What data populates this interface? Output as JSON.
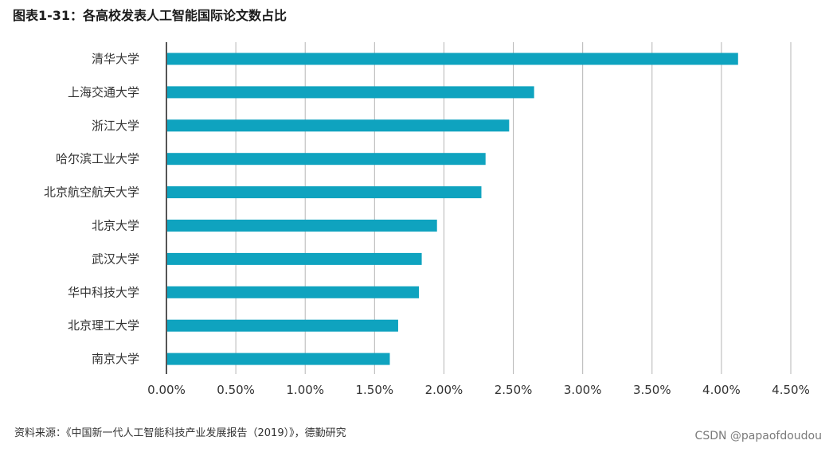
{
  "title": "图表1-31：各高校发表人工智能国际论文数占比",
  "source": "资料来源：《中国新一代人工智能科技产业发展报告（2019）》，德勤研究",
  "watermark": "CSDN @papaofdoudou",
  "chart_data": {
    "type": "bar",
    "orientation": "horizontal",
    "categories": [
      "清华大学",
      "上海交通大学",
      "浙江大学",
      "哈尔滨工业大学",
      "北京航空航天大学",
      "北京大学",
      "武汉大学",
      "华中科技大学",
      "北京理工大学",
      "南京大学"
    ],
    "values": [
      4.12,
      2.65,
      2.47,
      2.3,
      2.27,
      1.95,
      1.84,
      1.82,
      1.67,
      1.61
    ],
    "value_unit": "%",
    "xlim": [
      0,
      4.5
    ],
    "xticks": [
      "0.00%",
      "0.50%",
      "1.00%",
      "1.50%",
      "2.00%",
      "2.50%",
      "3.00%",
      "3.50%",
      "4.00%",
      "4.50%"
    ],
    "grid": "vertical",
    "bar_color": "#0fa3bf",
    "xlabel": "",
    "ylabel": ""
  }
}
